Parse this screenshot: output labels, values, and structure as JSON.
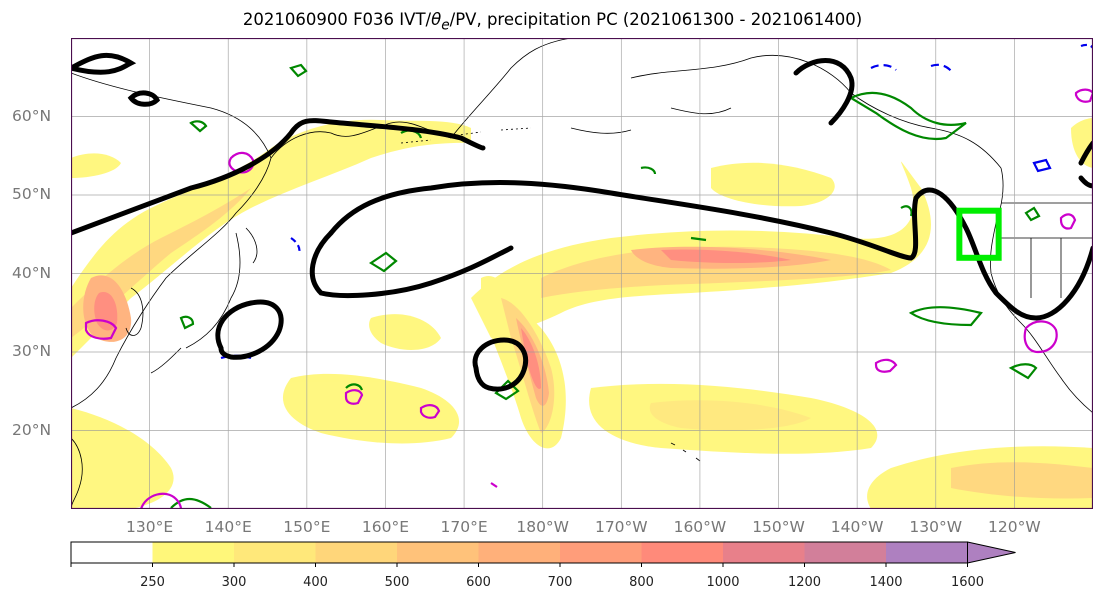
{
  "title": "2021060900 F036 IVT/θe/PV, precipitation PC (2021061300 - 2021061400)",
  "title_parts": {
    "prefix": "2021060900 F036 IVT/",
    "theta": "θ",
    "theta_sub": "e",
    "suffix": "/PV, precipitation PC (2021061300 - 2021061400)"
  },
  "map": {
    "projection": "PlateCarree",
    "lon_range": [
      120,
      250
    ],
    "lat_range": [
      10,
      70
    ],
    "lat_labels": [
      "20°N",
      "30°N",
      "40°N",
      "50°N",
      "60°N"
    ],
    "lon_labels": [
      "130°E",
      "140°E",
      "150°E",
      "160°E",
      "170°E",
      "180°W",
      "170°W",
      "160°W",
      "150°W",
      "140°W",
      "130°W",
      "120°W"
    ],
    "grid": true,
    "highlight_box": {
      "color": "#00ee00",
      "lon_range": [
        233,
        238
      ],
      "lat_range": [
        42,
        48
      ]
    }
  },
  "colorbar": {
    "ticks": [
      "250",
      "300",
      "400",
      "500",
      "600",
      "700",
      "800",
      "1000",
      "1200",
      "1400",
      "1600"
    ],
    "colors": [
      "#ffffff",
      "#fff77a",
      "#ffe87a",
      "#ffd67a",
      "#ffc27a",
      "#ffb07a",
      "#ff9d7a",
      "#ff8a7a",
      "#e8808a",
      "#d27f9a",
      "#ae80c0"
    ],
    "extend": "max"
  },
  "legend_colors": {
    "theta_e": "#000000",
    "pv_green": "#008800",
    "pv_blue": "#0000ee",
    "pv_magenta": "#cc00cc"
  }
}
